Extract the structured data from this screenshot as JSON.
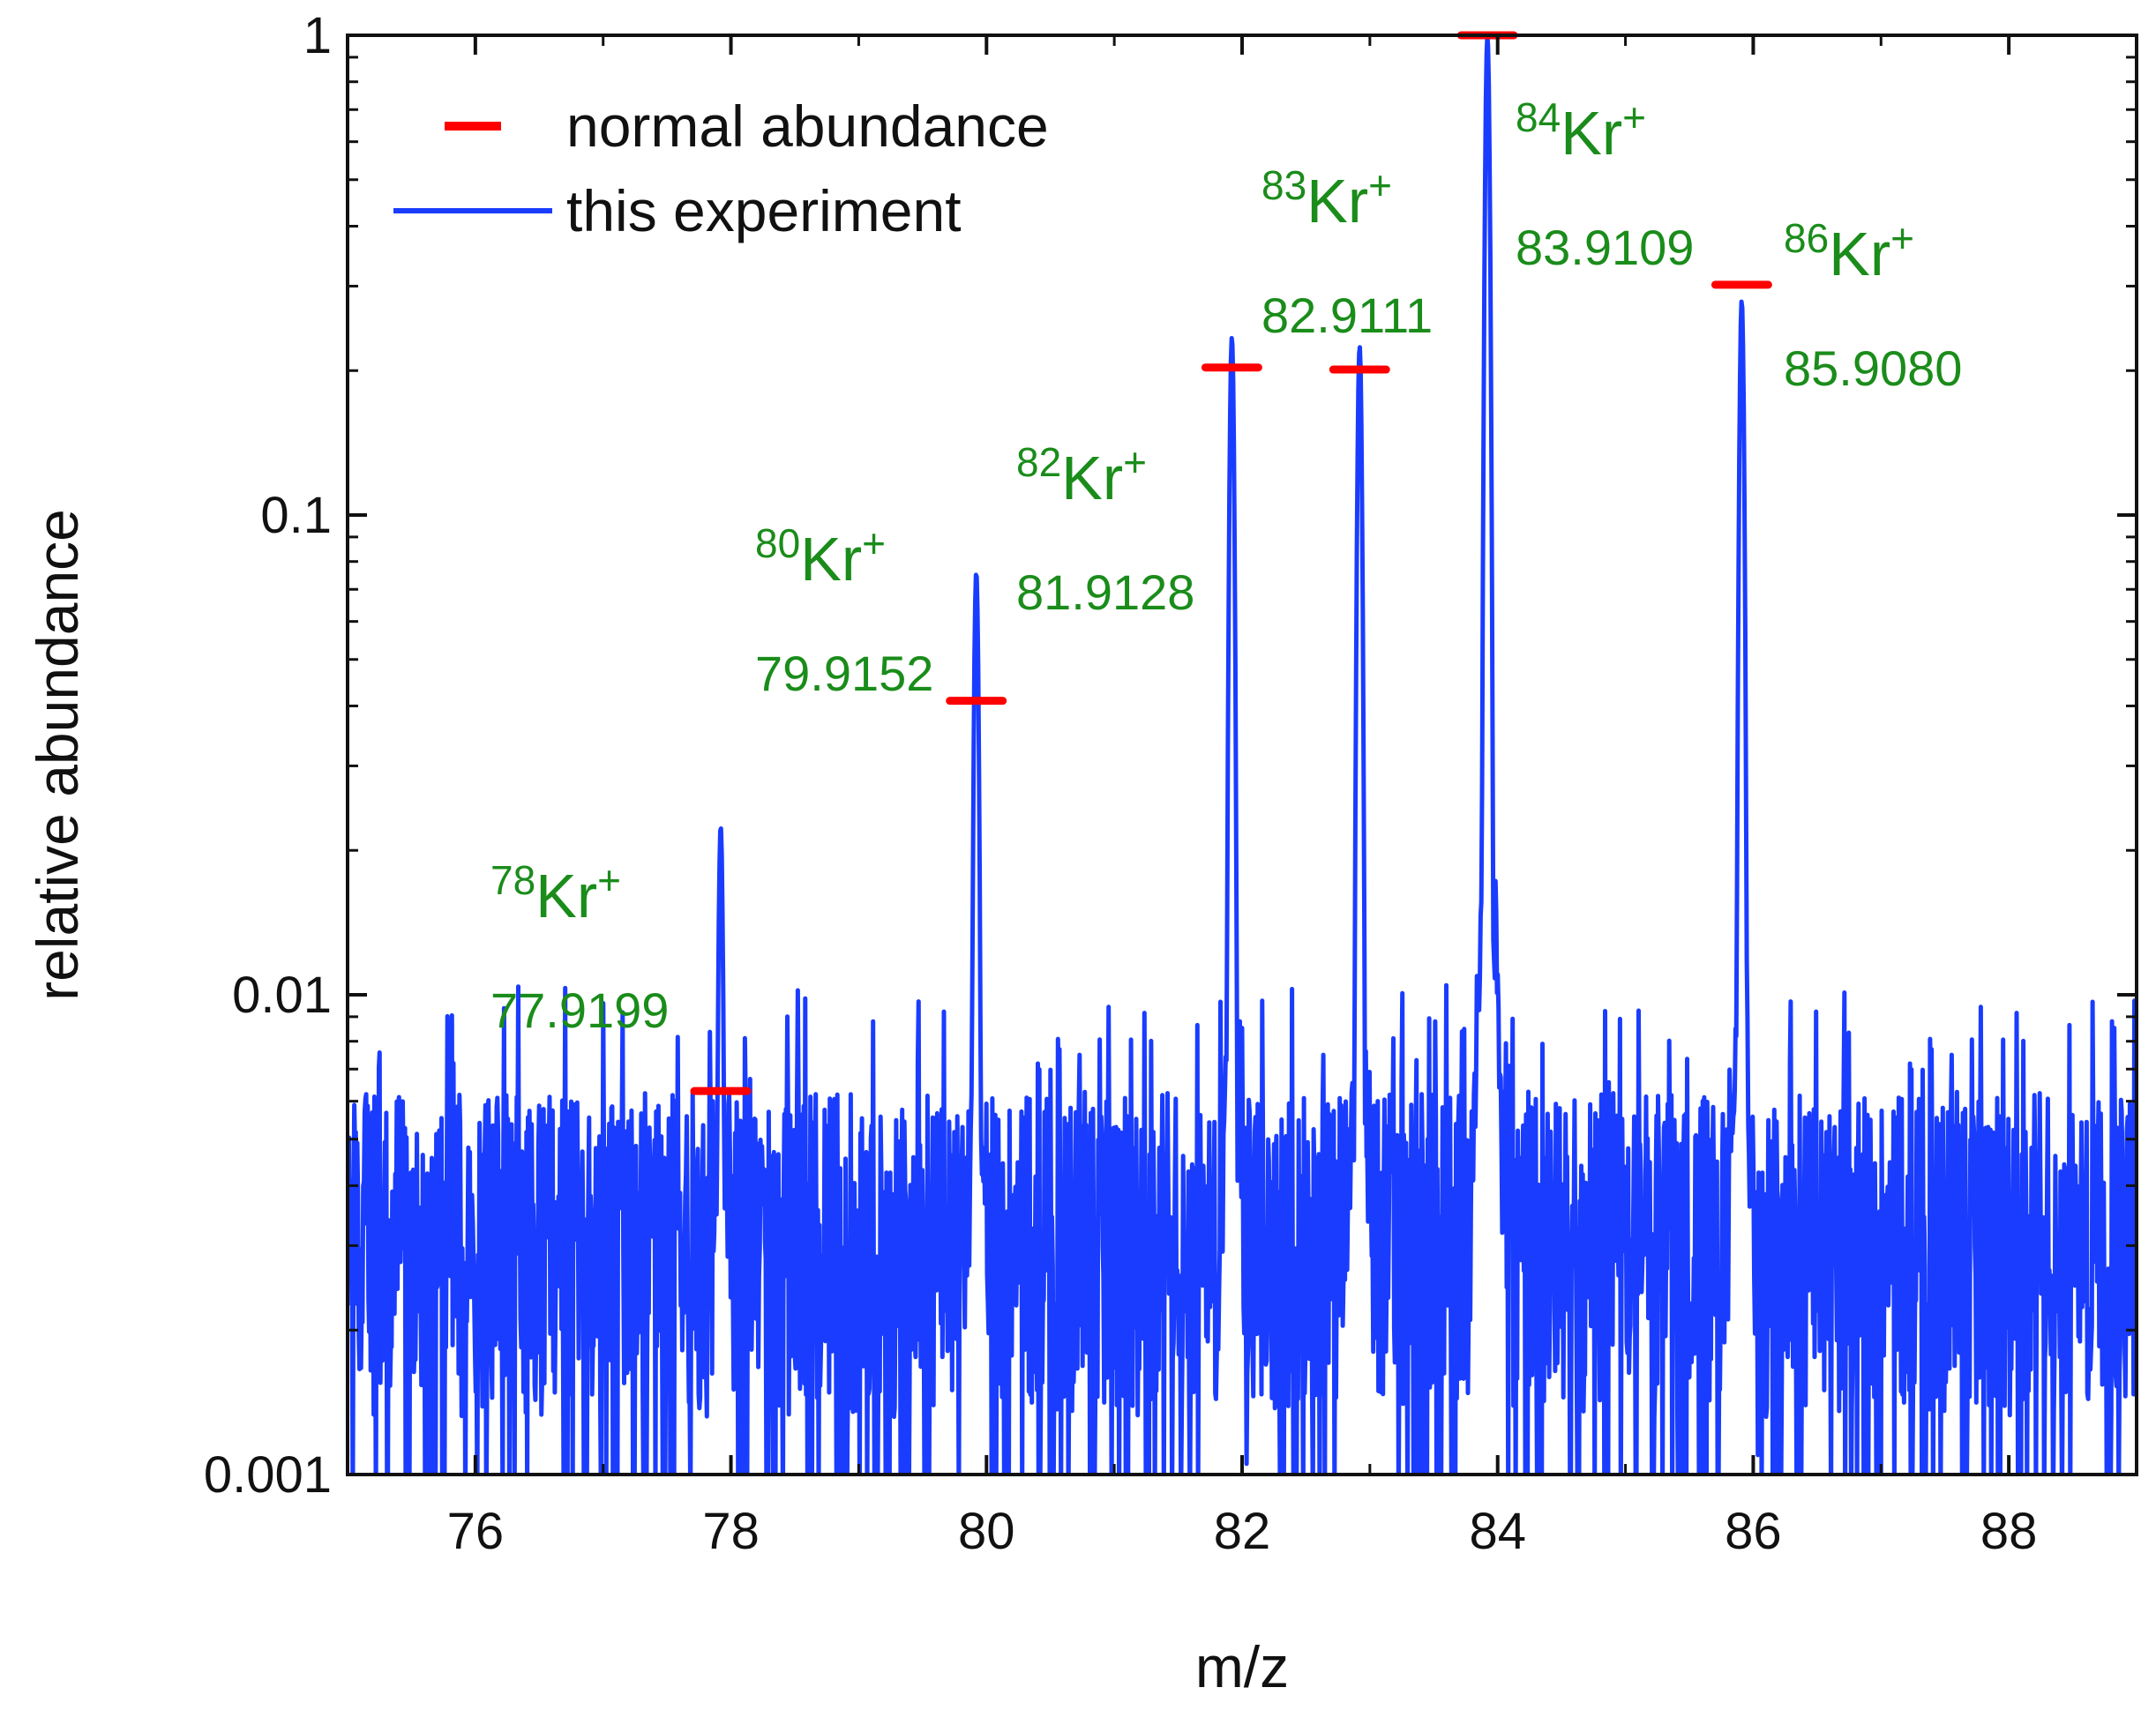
{
  "chart_data": {
    "type": "line",
    "xlabel": "m/z",
    "ylabel": "relative abundance",
    "xlim": [
      75,
      89
    ],
    "ylim": [
      0.001,
      1
    ],
    "yscale": "log",
    "xticks": [
      {
        "value": 76,
        "label": "76"
      },
      {
        "value": 78,
        "label": "78"
      },
      {
        "value": 80,
        "label": "80"
      },
      {
        "value": 82,
        "label": "82"
      },
      {
        "value": 84,
        "label": "84"
      },
      {
        "value": 86,
        "label": "86"
      },
      {
        "value": 88,
        "label": "88"
      }
    ],
    "yticks": [
      {
        "value": 0.001,
        "label": "0.001"
      },
      {
        "value": 0.01,
        "label": "0.01"
      },
      {
        "value": 0.1,
        "label": "0.1"
      },
      {
        "value": 1,
        "label": "1"
      }
    ],
    "legend_position": "top-left",
    "legend": [
      {
        "name": "normal abundance",
        "color": "#ff0000",
        "style": "dash"
      },
      {
        "name": "this experiment",
        "color": "#1a3cff",
        "style": "line"
      }
    ],
    "series": [
      {
        "name": "this experiment",
        "color": "#1a3cff",
        "noise_floor": [
          0.001,
          0.006
        ],
        "peaks": [
          {
            "x": 77.92,
            "y": 0.0225
          },
          {
            "x": 79.92,
            "y": 0.076
          },
          {
            "x": 81.92,
            "y": 0.235
          },
          {
            "x": 82.92,
            "y": 0.225
          },
          {
            "x": 83.92,
            "y": 1.0
          },
          {
            "x": 85.91,
            "y": 0.28
          }
        ]
      },
      {
        "name": "normal abundance",
        "color": "#ff0000",
        "points": [
          {
            "x": 77.92,
            "y": 0.0063
          },
          {
            "x": 79.92,
            "y": 0.041
          },
          {
            "x": 81.92,
            "y": 0.203
          },
          {
            "x": 82.92,
            "y": 0.201
          },
          {
            "x": 83.92,
            "y": 1.0
          },
          {
            "x": 85.91,
            "y": 0.302
          }
        ]
      }
    ],
    "annotations": [
      {
        "mass_number": "78",
        "symbol": "Kr",
        "charge": "+",
        "mass": "77.9199"
      },
      {
        "mass_number": "80",
        "symbol": "Kr",
        "charge": "+",
        "mass": "79.9152"
      },
      {
        "mass_number": "82",
        "symbol": "Kr",
        "charge": "+",
        "mass": "81.9128"
      },
      {
        "mass_number": "83",
        "symbol": "Kr",
        "charge": "+",
        "mass": "82.9111"
      },
      {
        "mass_number": "84",
        "symbol": "Kr",
        "charge": "+",
        "mass": "83.9109"
      },
      {
        "mass_number": "86",
        "symbol": "Kr",
        "charge": "+",
        "mass": "85.9080"
      }
    ],
    "annotation_color": "#1a8c1a"
  }
}
